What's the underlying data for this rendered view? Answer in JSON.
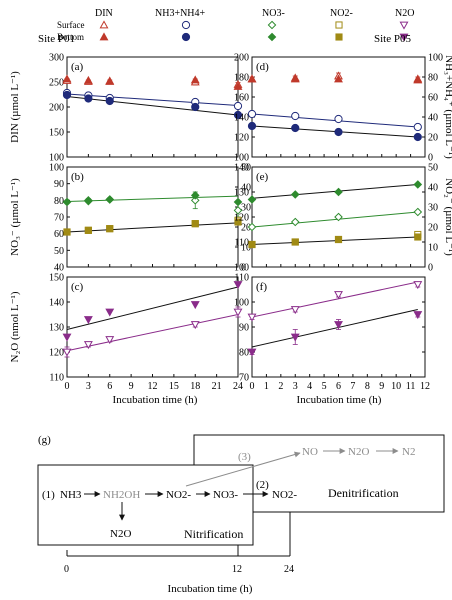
{
  "legend": {
    "headers": [
      "DIN",
      "NH3+NH4+",
      "NO3-",
      "NO2-",
      "N2O"
    ],
    "surface_label": "Surface",
    "bottom_label": "Bottom",
    "colors": {
      "DIN": "#c0392b",
      "NH": "#1f2a7a",
      "NO3": "#2e8b2e",
      "NO2": "#a08a14",
      "N2O": "#8a2c8a"
    }
  },
  "site_labels": {
    "left": "Site P01",
    "right": "Site P05"
  },
  "xlabel": "Incubation time (h)",
  "chart_data": [
    {
      "panel": "a",
      "type": "scatter",
      "site": "P01",
      "xlim": [
        0,
        24
      ],
      "xticks": [
        0,
        3,
        6,
        9,
        12,
        15,
        18,
        21,
        24
      ],
      "ylim": [
        100,
        300
      ],
      "yticks": [
        100,
        150,
        200,
        250,
        300
      ],
      "ylabel": "DIN (µmol L-1)",
      "series": [
        {
          "name": "DIN surface",
          "marker": "open-triangle",
          "color": "#c0392b",
          "x": [
            0,
            3,
            6,
            18,
            24
          ],
          "y": [
            253,
            251,
            251,
            250,
            245
          ],
          "yerr": [
            4,
            3,
            3,
            6,
            4
          ]
        },
        {
          "name": "DIN bottom",
          "marker": "filled-triangle",
          "color": "#c0392b",
          "x": [
            0,
            3,
            6,
            18,
            24
          ],
          "y": [
            256,
            253,
            252,
            254,
            241
          ]
        },
        {
          "name": "NH3+NH4+ surface",
          "marker": "open-circle",
          "color": "#1f2a7a",
          "x": [
            0,
            3,
            6,
            18,
            24
          ],
          "y": [
            228,
            223,
            218,
            210,
            202
          ],
          "fit": [
            226,
            203
          ]
        },
        {
          "name": "NH3+NH4+ bottom",
          "marker": "filled-circle",
          "color": "#1f2a7a",
          "x": [
            0,
            3,
            6,
            18,
            24
          ],
          "y": [
            224,
            217,
            212,
            200,
            184
          ],
          "fit": [
            221,
            184
          ]
        }
      ]
    },
    {
      "panel": "b",
      "type": "scatter",
      "site": "P01",
      "xlim": [
        0,
        24
      ],
      "xticks": [
        0,
        3,
        6,
        9,
        12,
        15,
        18,
        21,
        24
      ],
      "ylim": [
        40,
        100
      ],
      "yticks": [
        40,
        50,
        60,
        70,
        80,
        90,
        100
      ],
      "ylabel": "NO3- (µmol L-1)",
      "y2lim": [
        0,
        50
      ],
      "y2ticks": [
        0,
        10,
        20,
        30,
        40,
        50
      ],
      "series": [
        {
          "name": "NO3- surface",
          "marker": "open-diamond",
          "color": "#2e8b2e",
          "x": [
            0,
            3,
            6,
            18,
            24
          ],
          "y": [
            79,
            80,
            80.5,
            80,
            74
          ],
          "yerr": [
            1,
            1,
            1,
            5,
            4
          ],
          "fit": [
            79.3,
            82.5
          ]
        },
        {
          "name": "NO3- bottom",
          "marker": "filled-diamond",
          "color": "#2e8b2e",
          "x": [
            0,
            3,
            6,
            18,
            24
          ],
          "y": [
            79,
            79.5,
            80.5,
            83,
            79
          ]
        },
        {
          "name": "NO2- surface",
          "marker": "open-square",
          "color": "#a08a14",
          "x": [
            0,
            3,
            6,
            18,
            24
          ],
          "y": [
            61,
            62,
            63,
            66,
            68
          ]
        },
        {
          "name": "NO2- bottom",
          "marker": "filled-square",
          "color": "#a08a14",
          "x": [
            0,
            3,
            6,
            18,
            24
          ],
          "y": [
            61,
            62,
            63,
            66,
            67
          ],
          "fit": [
            61,
            66.5
          ]
        }
      ]
    },
    {
      "panel": "c",
      "type": "scatter",
      "site": "P01",
      "xlim": [
        0,
        24
      ],
      "xticks": [
        0,
        3,
        6,
        9,
        12,
        15,
        18,
        21,
        24
      ],
      "ylim": [
        110,
        150
      ],
      "yticks": [
        110,
        120,
        130,
        140,
        150
      ],
      "ylabel": "N2O (nmol L-1)",
      "series": [
        {
          "name": "N2O surface",
          "marker": "open-inverted-triangle",
          "color": "#8a2c8a",
          "x": [
            0,
            3,
            6,
            18,
            24
          ],
          "y": [
            120,
            123,
            125,
            131,
            136
          ],
          "yerr": [
            2,
            1,
            1,
            1,
            2
          ],
          "fit": [
            120.5,
            135
          ]
        },
        {
          "name": "N2O bottom",
          "marker": "filled-inverted-triangle",
          "color": "#8a2c8a",
          "x": [
            0,
            3,
            6,
            18,
            24
          ],
          "y": [
            126,
            133,
            136,
            139,
            147
          ],
          "fit": [
            129,
            146
          ]
        }
      ]
    },
    {
      "panel": "d",
      "type": "scatter",
      "site": "P05",
      "xlim": [
        0,
        12
      ],
      "xticks": [
        0,
        1,
        2,
        3,
        4,
        5,
        6,
        7,
        8,
        9,
        10,
        11,
        12
      ],
      "ylim": [
        100,
        200
      ],
      "yticks": [
        100,
        120,
        140,
        160,
        180,
        200
      ],
      "ylabel": "NH3+NH4+ (µmol L-1)",
      "series": [
        {
          "name": "DIN surface",
          "marker": "open-triangle",
          "color": "#c0392b",
          "x": [
            0,
            3,
            6,
            11.5
          ],
          "y": [
            178,
            179,
            181,
            178
          ],
          "yerr": [
            2,
            2,
            3,
            2
          ]
        },
        {
          "name": "DIN bottom",
          "marker": "filled-triangle",
          "color": "#c0392b",
          "x": [
            0,
            3,
            6,
            11.5
          ],
          "y": [
            178,
            178,
            178,
            177
          ]
        },
        {
          "name": "NH3+NH4+ surface",
          "marker": "open-circle",
          "color": "#1f2a7a",
          "x": [
            0,
            3,
            6,
            11.5
          ],
          "y": [
            143,
            141,
            138,
            130
          ],
          "fit": [
            143,
            130
          ]
        },
        {
          "name": "NH3+NH4+ bottom",
          "marker": "filled-circle",
          "color": "#1f2a7a",
          "x": [
            0,
            3,
            6,
            11.5
          ],
          "y": [
            131,
            129,
            125,
            120
          ],
          "fit": [
            131,
            120
          ]
        }
      ]
    },
    {
      "panel": "e",
      "type": "scatter",
      "site": "P05",
      "xlim": [
        0,
        12
      ],
      "xticks": [
        0,
        1,
        2,
        3,
        4,
        5,
        6,
        7,
        8,
        9,
        10,
        11,
        12
      ],
      "ylim": [
        100,
        140
      ],
      "yticks": [
        100,
        110,
        120,
        130,
        140
      ],
      "y2lim": [
        0,
        50
      ],
      "y2ticks": [
        0,
        10,
        20,
        30,
        40,
        50
      ],
      "y2label": "NO2- (µmol L-1)",
      "series": [
        {
          "name": "NO3- surface",
          "marker": "open-diamond",
          "color": "#2e8b2e",
          "x": [
            0,
            3,
            6,
            11.5
          ],
          "y": [
            116,
            118,
            120,
            122
          ],
          "fit": [
            116,
            122
          ]
        },
        {
          "name": "NO3- bottom",
          "marker": "filled-diamond",
          "color": "#2e8b2e",
          "x": [
            0,
            3,
            6,
            11.5
          ],
          "y": [
            127,
            129,
            130,
            133
          ],
          "fit": [
            127.5,
            133
          ]
        },
        {
          "name": "NO2- surface",
          "marker": "open-square",
          "color": "#a08a14",
          "x": [
            0,
            3,
            6,
            11.5
          ],
          "y": [
            109,
            110,
            111,
            113
          ]
        },
        {
          "name": "NO2- bottom",
          "marker": "filled-square",
          "color": "#a08a14",
          "x": [
            0,
            3,
            6,
            11.5
          ],
          "y": [
            109,
            110,
            111,
            112
          ],
          "fit": [
            109,
            112
          ]
        }
      ]
    },
    {
      "panel": "f",
      "type": "scatter",
      "site": "P05",
      "xlim": [
        0,
        12
      ],
      "xticks": [
        0,
        1,
        2,
        3,
        4,
        5,
        6,
        7,
        8,
        9,
        10,
        11,
        12
      ],
      "ylim": [
        70,
        110
      ],
      "yticks": [
        70,
        80,
        90,
        100,
        110
      ],
      "series": [
        {
          "name": "N2O surface",
          "marker": "open-inverted-triangle",
          "color": "#8a2c8a",
          "x": [
            0,
            3,
            6,
            11.5
          ],
          "y": [
            94,
            97,
            103,
            107
          ],
          "yerr": [
            1,
            1,
            1,
            1
          ],
          "fit": [
            94,
            108
          ]
        },
        {
          "name": "N2O bottom",
          "marker": "filled-inverted-triangle",
          "color": "#8a2c8a",
          "x": [
            0,
            3,
            6,
            11.5
          ],
          "y": [
            80,
            86,
            91,
            95
          ],
          "yerr": [
            1,
            3,
            2,
            1
          ],
          "fit": [
            82,
            97
          ]
        }
      ]
    }
  ],
  "panel_labels": [
    "(a)",
    "(b)",
    "(c)",
    "(d)",
    "(e)",
    "(f)"
  ],
  "scheme": {
    "label": "(g)",
    "step1": "(1)",
    "step2": "(2)",
    "step3": "(3)",
    "nh3": "NH3",
    "nh2oh": "NH2OH",
    "no2": "NO2-",
    "no3": "NO3-",
    "no2b": "NO2-",
    "n2o_left": "N2O",
    "no": "NO",
    "n2o_right": "N2O",
    "n2": "N2",
    "nitrification": "Nitrification",
    "denitrification": "Denitrification",
    "timeline_ticks": [
      "0",
      "12",
      "24"
    ],
    "timeline_label": "Incubation time (h)"
  }
}
